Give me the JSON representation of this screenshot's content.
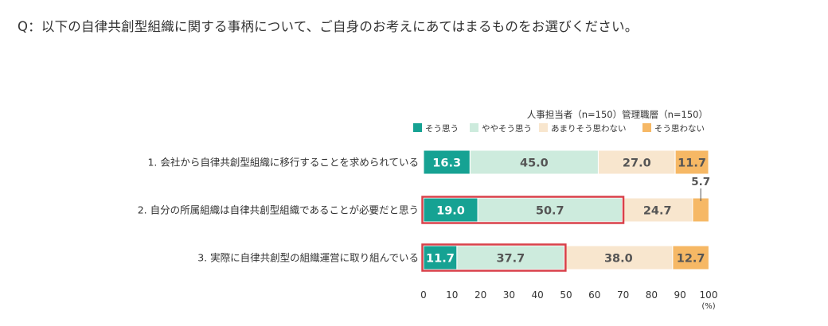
{
  "question": "Q：以下の自律共創型組織に関する事柄について、ご自身のお考えにあてはまるものをお選びください。",
  "chart_data": {
    "type": "bar",
    "stacked": true,
    "orientation": "horizontal",
    "sample_note": "人事担当者（n=150）管理職層（n=150）",
    "categories": [
      "1. 会社から自律共創型組織に移行することを求められている",
      "2. 自分の所属組織は自律共創型組織であることが必要だと思う",
      "3. 実際に自律共創型の組織運営に取り組んでいる"
    ],
    "series": [
      {
        "name": "そう思う",
        "color": "#16A293",
        "values": [
          16.3,
          19.0,
          11.7
        ]
      },
      {
        "name": "ややそう思う",
        "color": "#CDEBDD",
        "values": [
          45.0,
          50.7,
          37.7
        ]
      },
      {
        "name": "あまりそう思わない",
        "color": "#F8E6CE",
        "values": [
          27.0,
          24.7,
          38.0
        ]
      },
      {
        "name": "そう思わない",
        "color": "#F6B865",
        "values": [
          11.7,
          5.7,
          12.7
        ]
      }
    ],
    "value_labels": [
      [
        "16.3",
        "45.0",
        "27.0",
        "11.7"
      ],
      [
        "19.0",
        "50.7",
        "24.7",
        "5.7"
      ],
      [
        "11.7",
        "37.7",
        "38.0",
        "12.7"
      ]
    ],
    "highlight": {
      "color": "#D9414A",
      "boxes": [
        [
          1,
          0,
          1
        ],
        [
          2,
          0,
          1
        ]
      ]
    },
    "xlim": [
      0,
      100
    ],
    "x_ticks": [
      "0",
      "10",
      "20",
      "30",
      "40",
      "50",
      "60",
      "70",
      "80",
      "90",
      "100"
    ],
    "x_unit": "(%)",
    "legend": "top-right",
    "grid": false
  }
}
